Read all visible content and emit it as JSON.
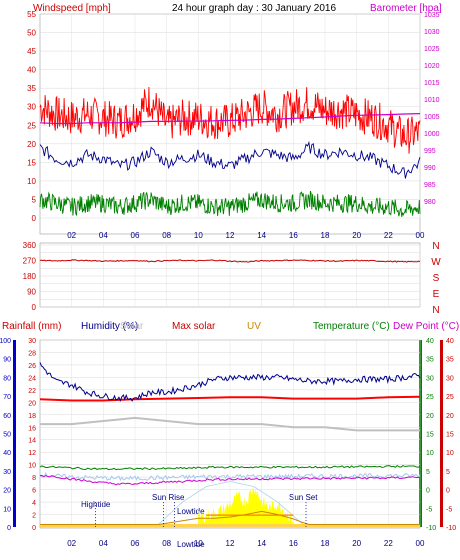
{
  "header": {
    "windspeed_label": "Windspeed [mph]",
    "title": "24 hour graph day : 30 January 2016",
    "barometer_label": "Barometer [hpa]"
  },
  "time_ticks": [
    "02",
    "04",
    "06",
    "08",
    "10",
    "12",
    "14",
    "16",
    "18",
    "20",
    "22",
    "00"
  ],
  "panel_labels": {
    "rainfall": "Rainfall (mm)",
    "humidity": "Humidity (%)",
    "solar": "Solar",
    "max_solar": "Max solar",
    "uv": "UV",
    "temperature": "Temperature (°C)",
    "dew_point": "Dew Point (°C)"
  },
  "events": {
    "hightide": "Hightide",
    "sunrise": "Sun Rise",
    "lowtide_1": "Lowtide",
    "sunset": "Sun Set",
    "lowtide_2": "Lowtide"
  },
  "colors": {
    "gust": "#ff0000",
    "wind_avg": "#00008b",
    "wind_low": "#008000",
    "barometer": "#cc00cc",
    "direction": "#cc0000",
    "humidity": "#00008b",
    "temperature": "#008000",
    "dew_point": "#cc00cc",
    "solar": "#c0c0c0",
    "max_solar": "#ff0000",
    "uv": "#cc8800",
    "rain": "#0000cc",
    "uv_fill": "#ffff00",
    "axis": "#888888"
  },
  "chart_data": [
    {
      "type": "line",
      "title": "24 hour graph day : 30 January 2016",
      "x_unit": "hour",
      "xlim": [
        0,
        24
      ],
      "x_ticks": [
        "02",
        "04",
        "06",
        "08",
        "10",
        "12",
        "14",
        "16",
        "18",
        "20",
        "22",
        "00"
      ],
      "y_left": {
        "label": "Windspeed [mph]",
        "lim": [
          0,
          55
        ],
        "ticks": [
          0,
          5,
          10,
          15,
          20,
          25,
          30,
          35,
          40,
          45,
          50,
          55
        ]
      },
      "y_right": {
        "label": "Barometer [hpa]",
        "lim": [
          975,
          1035
        ],
        "ticks": [
          980,
          985,
          990,
          995,
          1000,
          1005,
          1010,
          1015,
          1020,
          1025,
          1030,
          1035
        ]
      },
      "grid": true,
      "series": [
        {
          "name": "Windspeed",
          "axis": "left",
          "x": [
            0,
            1,
            2,
            3,
            4,
            5,
            6,
            7,
            8,
            9,
            10,
            11,
            12,
            13,
            14,
            15,
            16,
            17,
            18,
            19,
            20,
            21,
            22,
            23,
            24
          ],
          "values": [
            19,
            16,
            15,
            17,
            16,
            14,
            15,
            18,
            15,
            16,
            17,
            15,
            14,
            16,
            18,
            17,
            16,
            19,
            17,
            18,
            17,
            16,
            14,
            12,
            15
          ]
        },
        {
          "name": "Gust",
          "axis": "left",
          "x": [
            0,
            1,
            2,
            3,
            4,
            5,
            6,
            7,
            8,
            9,
            10,
            11,
            12,
            13,
            14,
            15,
            16,
            17,
            18,
            19,
            20,
            21,
            22,
            23,
            24
          ],
          "values": [
            30,
            28,
            27,
            28,
            27,
            26,
            28,
            32,
            25,
            27,
            27,
            26,
            26,
            28,
            30,
            28,
            30,
            31,
            29,
            29,
            28,
            27,
            25,
            22,
            23
          ]
        },
        {
          "name": "Wind low",
          "axis": "left",
          "x": [
            0,
            1,
            2,
            3,
            4,
            5,
            6,
            7,
            8,
            9,
            10,
            11,
            12,
            13,
            14,
            15,
            16,
            17,
            18,
            19,
            20,
            21,
            22,
            23,
            24
          ],
          "values": [
            5,
            4,
            3,
            4,
            4,
            3,
            4,
            5,
            3,
            4,
            4,
            3,
            3,
            4,
            5,
            4,
            4,
            5,
            4,
            4,
            4,
            3,
            3,
            2,
            3
          ]
        },
        {
          "name": "Barometer",
          "axis": "right",
          "x": [
            0,
            1,
            2,
            3,
            4,
            5,
            6,
            7,
            8,
            9,
            10,
            11,
            12,
            13,
            14,
            15,
            16,
            17,
            18,
            19,
            20,
            21,
            22,
            23,
            24
          ],
          "values": [
            1003,
            1002.8,
            1002.8,
            1003,
            1003,
            1003,
            1003.2,
            1003.4,
            1003.4,
            1003.5,
            1003.5,
            1003.6,
            1003.7,
            1003.8,
            1004,
            1004.1,
            1004.3,
            1004.5,
            1004.7,
            1005,
            1005.2,
            1005.3,
            1005.4,
            1005.6,
            1005.7
          ]
        }
      ]
    },
    {
      "type": "line",
      "title": "",
      "xlim": [
        0,
        24
      ],
      "y_left": {
        "label": "",
        "lim": [
          0,
          360
        ],
        "ticks": [
          0,
          45,
          90,
          135,
          180,
          225,
          270,
          315,
          360
        ]
      },
      "y_right_labels": [
        "N",
        "W",
        "S",
        "E",
        "N"
      ],
      "grid": true,
      "series": [
        {
          "name": "Wind direction",
          "x": [
            0,
            1,
            2,
            3,
            4,
            5,
            6,
            7,
            8,
            9,
            10,
            11,
            12,
            13,
            14,
            15,
            16,
            17,
            18,
            19,
            20,
            21,
            22,
            23,
            24
          ],
          "values": [
            270,
            268,
            272,
            270,
            266,
            268,
            270,
            265,
            269,
            271,
            268,
            272,
            266,
            262,
            268,
            270,
            272,
            270,
            268,
            266,
            270,
            268,
            265,
            262,
            265
          ]
        }
      ]
    },
    {
      "type": "line",
      "title": "",
      "xlim": [
        0,
        24
      ],
      "y_rain": {
        "label": "Rainfall (mm)",
        "lim": [
          0,
          100
        ],
        "ticks": [
          0,
          10,
          20,
          30,
          40,
          50,
          60,
          70,
          80,
          90,
          100
        ]
      },
      "y_mid": {
        "lim": [
          0,
          30
        ],
        "ticks": [
          0,
          2,
          4,
          6,
          8,
          10,
          12,
          14,
          16,
          18,
          20,
          22,
          24,
          26,
          28,
          30
        ]
      },
      "y_temp": {
        "label": "Temperature (°C)",
        "lim": [
          -10,
          40
        ],
        "ticks": [
          -10,
          -5,
          0,
          5,
          10,
          15,
          20,
          25,
          30,
          35,
          40
        ]
      },
      "y_dew": {
        "label": "Dew Point (°C)",
        "lim": [
          -10,
          40
        ],
        "ticks": [
          -10,
          -5,
          0,
          5,
          10,
          15,
          20,
          25,
          30,
          35,
          40
        ]
      },
      "grid": true,
      "series": [
        {
          "name": "Humidity",
          "axis": "rain",
          "x": [
            0,
            1,
            2,
            3,
            4,
            5,
            6,
            7,
            8,
            9,
            10,
            11,
            12,
            13,
            14,
            15,
            16,
            17,
            18,
            19,
            20,
            21,
            22,
            23,
            24
          ],
          "values": [
            87,
            78,
            76,
            72,
            70,
            69,
            69,
            72,
            72,
            74,
            76,
            79,
            80,
            80,
            80,
            80,
            79,
            78,
            78,
            78,
            79,
            79,
            79,
            80,
            81
          ]
        },
        {
          "name": "Temperature",
          "axis": "temp",
          "x": [
            0,
            1,
            2,
            3,
            4,
            5,
            6,
            7,
            8,
            9,
            10,
            11,
            12,
            13,
            14,
            15,
            16,
            17,
            18,
            19,
            20,
            21,
            22,
            23,
            24
          ],
          "values": [
            6.2,
            6,
            5.8,
            5.6,
            5.5,
            5.5,
            5.6,
            5.6,
            5.6,
            5.7,
            5.8,
            6,
            6,
            6,
            6,
            6,
            6,
            6,
            6,
            6.1,
            6.1,
            6.1,
            6.2,
            6.2,
            6.2
          ]
        },
        {
          "name": "Dew Point",
          "axis": "dew",
          "x": [
            0,
            1,
            2,
            3,
            4,
            5,
            6,
            7,
            8,
            9,
            10,
            11,
            12,
            13,
            14,
            15,
            16,
            17,
            18,
            19,
            20,
            21,
            22,
            23,
            24
          ],
          "values": [
            3.8,
            3.5,
            2.8,
            2.3,
            1.8,
            1.5,
            1.5,
            1.8,
            2,
            2.2,
            2.5,
            2.7,
            2.8,
            2.8,
            2.9,
            2.9,
            2.9,
            3,
            3,
            3,
            3.1,
            3.1,
            3.1,
            3.2,
            3.4
          ]
        },
        {
          "name": "Temperature (light)",
          "axis": "temp",
          "x": [
            0,
            1,
            2,
            3,
            4,
            5,
            6,
            7,
            8,
            9,
            10,
            11,
            12,
            13,
            14,
            15,
            16,
            17,
            18,
            19,
            20,
            21,
            22,
            23,
            24
          ],
          "values": [
            4,
            3.6,
            3.4,
            3.2,
            3.1,
            3,
            3,
            3.1,
            3.2,
            3.3,
            3.4,
            3.5,
            3.5,
            3.5,
            3.5,
            3.5,
            3.5,
            3.6,
            3.6,
            3.6,
            3.6,
            3.7,
            3.7,
            3.7,
            3.8
          ]
        },
        {
          "name": "Max solar",
          "axis": "mid",
          "x": [
            0,
            2,
            4,
            6,
            8,
            10,
            12,
            14,
            16,
            18,
            20,
            22,
            24
          ],
          "values": [
            20.5,
            20.3,
            20.3,
            20.5,
            20.6,
            20.7,
            20.8,
            20.8,
            20.6,
            20.6,
            20.6,
            20.8,
            20.9
          ]
        },
        {
          "name": "Solar",
          "axis": "mid",
          "x": [
            0,
            2,
            4,
            6,
            8,
            10,
            12,
            14,
            16,
            18,
            20,
            22,
            24
          ],
          "values": [
            16.5,
            16.5,
            17,
            17.5,
            17,
            16.5,
            16.5,
            16.5,
            16,
            16,
            15.5,
            15.5,
            15.5
          ]
        },
        {
          "name": "UV",
          "axis": "mid",
          "x": [
            0,
            7.5,
            8,
            9,
            10,
            11,
            12,
            13,
            14,
            15,
            16,
            16.5,
            17,
            24
          ],
          "values": [
            0.4,
            0.4,
            0.6,
            1,
            1.4,
            1.4,
            1.6,
            2,
            2.5,
            2,
            1.3,
            0.8,
            0.4,
            0.4
          ]
        },
        {
          "name": "Solar arc",
          "axis": "mid",
          "x": [
            7.3,
            9,
            10.5,
            12,
            13.5,
            15,
            16.8
          ],
          "values": [
            0,
            4,
            6.5,
            7.3,
            6.5,
            4,
            0
          ]
        },
        {
          "name": "Solar fill",
          "axis": "mid",
          "x": [
            10,
            11,
            12,
            12.5,
            13,
            13.5,
            14,
            14.5,
            15,
            15.5,
            16
          ],
          "values": [
            1.5,
            2.2,
            3.5,
            4.8,
            4,
            6.5,
            4.2,
            3,
            3.8,
            2.5,
            1.2
          ]
        }
      ]
    }
  ]
}
